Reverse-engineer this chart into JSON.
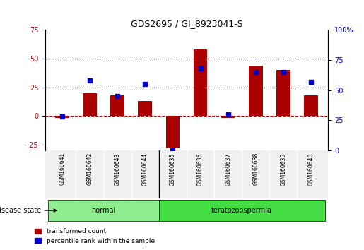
{
  "title": "GDS2695 / GI_8923041-S",
  "samples": [
    "GSM160641",
    "GSM160642",
    "GSM160643",
    "GSM160644",
    "GSM160635",
    "GSM160636",
    "GSM160637",
    "GSM160638",
    "GSM160639",
    "GSM160640"
  ],
  "transformed_count": [
    -2,
    20,
    18,
    13,
    -28,
    58,
    -2,
    44,
    40,
    18
  ],
  "percentile_rank": [
    28,
    58,
    45,
    55,
    0,
    68,
    30,
    65,
    65,
    57
  ],
  "groups": [
    {
      "label": "normal",
      "start": 0,
      "end": 4
    },
    {
      "label": "teratozoospermia",
      "start": 4,
      "end": 10
    }
  ],
  "group_colors": [
    "#90EE90",
    "#00CC44"
  ],
  "bar_color": "#AA0000",
  "dot_color": "#0000CC",
  "left_ylim": [
    -30,
    75
  ],
  "right_ylim": [
    0,
    100
  ],
  "left_yticks": [
    -25,
    0,
    25,
    50,
    75
  ],
  "right_yticks": [
    0,
    25,
    50,
    75,
    100
  ],
  "right_yticklabels": [
    "0",
    "25",
    "50",
    "75",
    "100%"
  ],
  "hlines": [
    25,
    50
  ],
  "zero_line_color": "#CC0000",
  "legend_items": [
    {
      "label": "transformed count",
      "color": "#AA0000",
      "marker": "s"
    },
    {
      "label": "percentile rank within the sample",
      "color": "#0000CC",
      "marker": "s"
    }
  ],
  "disease_state_label": "disease state",
  "bg_color": "#F0F0F0"
}
